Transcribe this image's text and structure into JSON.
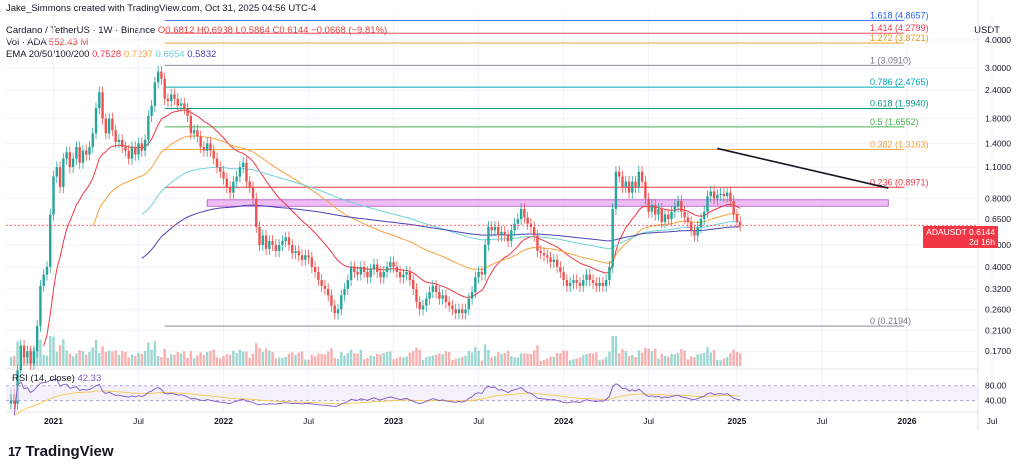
{
  "header": {
    "creator": "Jake_Simmons created with TradingView.com, Oct 31, 2025 04:56 UTC-4",
    "symbol_line": "Cardano / TetherUS · 1W · Binance",
    "ohlc": "O0.6812 H0.6938 L0.5864 C0.6144 −0.0668 (−9.81%)",
    "vol_label": "Vol · ADA",
    "vol_value": "552.43 M",
    "ema_label": "EMA 20/50/100/200",
    "ema_values": [
      "0.7528",
      "0.7237",
      "0.6654",
      "0.5832"
    ],
    "unit": "USDT"
  },
  "price_badge": {
    "symbol": "ADAUSDT",
    "price": "0.6144",
    "countdown": "2d 16h"
  },
  "logo": {
    "mark": "17",
    "text": "TradingView"
  },
  "rsi": {
    "label": "RSI (14, close)",
    "value": "42.33",
    "levels": [
      "80.00",
      "40.00"
    ]
  },
  "colors": {
    "up": "#26a69a",
    "down": "#ef5350",
    "ema20": "#f23645",
    "ema50": "#f7a13a",
    "ema100": "#6ed3d8",
    "ema200": "#4841b6",
    "zone": "#e8a7f0",
    "trend": "#131722"
  },
  "chart_data": {
    "type": "candlestick",
    "title": "Cardano / TetherUS · 1W · Binance",
    "y_scale": "log",
    "y_ticks": [
      "4.0000",
      "3.0000",
      "2.4000",
      "1.8000",
      "1.4000",
      "1.1000",
      "0.8000",
      "0.6500",
      "0.5000",
      "0.4000",
      "0.3200",
      "0.2600",
      "0.2100",
      "0.1700"
    ],
    "x_ticks": [
      "2021",
      "Jul",
      "2022",
      "Jul",
      "2023",
      "Jul",
      "2024",
      "Jul",
      "2025",
      "Jul",
      "2026",
      "Jul"
    ],
    "x_start": "2020-10-05",
    "x_end": "2025-10-27",
    "fib_levels": [
      {
        "label": "1.618 (4.8657)",
        "price": 4.8657,
        "color": "#2962ff"
      },
      {
        "label": "1.414 (4.2799)",
        "price": 4.2799,
        "color": "#f23645"
      },
      {
        "label": "1.272 (3.8721)",
        "price": 3.8721,
        "color": "#e09a1a"
      },
      {
        "label": "1 (3.0910)",
        "price": 3.091,
        "color": "#787b86"
      },
      {
        "label": "0.786 (2.4765)",
        "price": 2.4765,
        "color": "#00a6b5"
      },
      {
        "label": "0.618 (1.9940)",
        "price": 1.994,
        "color": "#089981"
      },
      {
        "label": "0.5 (1.6552)",
        "price": 1.6552,
        "color": "#4caf50"
      },
      {
        "label": "0.382 (1.3163)",
        "price": 1.3163,
        "color": "#f7a13a"
      },
      {
        "label": "0.236 (0.8971)",
        "price": 0.8971,
        "color": "#f23645"
      },
      {
        "label": "0 (0.2194)",
        "price": 0.2194,
        "color": "#787b86"
      }
    ],
    "resistance_zone": {
      "low": 0.74,
      "high": 0.79,
      "from": "2021-11-29",
      "to": "2025-10-27"
    },
    "trendline": {
      "from": [
        "2024-11-25",
        1.33
      ],
      "to": [
        "2025-10-27",
        0.89
      ]
    },
    "series": [
      {
        "name": "ADAUSDT",
        "values": [
          [
            0.1,
            0.11
          ],
          [
            0.11,
            0.1
          ],
          [
            0.1,
            0.14
          ],
          [
            0.14,
            0.18
          ],
          [
            0.18,
            0.16
          ],
          [
            0.16,
            0.17
          ],
          [
            0.17,
            0.15
          ],
          [
            0.15,
            0.17
          ],
          [
            0.17,
            0.22
          ],
          [
            0.22,
            0.33
          ],
          [
            0.33,
            0.37
          ],
          [
            0.37,
            0.4
          ],
          [
            0.4,
            0.68
          ],
          [
            0.68,
            1.0
          ],
          [
            1.0,
            1.1
          ],
          [
            1.1,
            0.9
          ],
          [
            0.9,
            1.2
          ],
          [
            1.2,
            1.28
          ],
          [
            1.28,
            1.1
          ],
          [
            1.1,
            1.2
          ],
          [
            1.2,
            1.35
          ],
          [
            1.35,
            1.15
          ],
          [
            1.15,
            1.3
          ],
          [
            1.3,
            1.25
          ],
          [
            1.25,
            1.35
          ],
          [
            1.35,
            1.55
          ],
          [
            1.55,
            2.0
          ],
          [
            2.0,
            2.35
          ],
          [
            2.35,
            1.8
          ],
          [
            1.8,
            1.55
          ],
          [
            1.55,
            1.8
          ],
          [
            1.8,
            1.6
          ],
          [
            1.6,
            1.42
          ],
          [
            1.42,
            1.45
          ],
          [
            1.45,
            1.35
          ],
          [
            1.35,
            1.3
          ],
          [
            1.3,
            1.2
          ],
          [
            1.2,
            1.35
          ],
          [
            1.35,
            1.25
          ],
          [
            1.25,
            1.4
          ],
          [
            1.4,
            1.3
          ],
          [
            1.3,
            1.45
          ],
          [
            1.45,
            1.85
          ],
          [
            1.85,
            2.05
          ],
          [
            2.05,
            2.6
          ],
          [
            2.6,
            2.9
          ],
          [
            2.9,
            2.7
          ],
          [
            2.7,
            2.2
          ],
          [
            2.2,
            2.15
          ],
          [
            2.15,
            2.3
          ],
          [
            2.3,
            2.2
          ],
          [
            2.2,
            2.05
          ],
          [
            2.05,
            2.1
          ],
          [
            2.1,
            2.0
          ],
          [
            2.0,
            1.85
          ],
          [
            1.85,
            1.55
          ],
          [
            1.55,
            1.6
          ],
          [
            1.6,
            1.5
          ],
          [
            1.5,
            1.35
          ],
          [
            1.35,
            1.3
          ],
          [
            1.3,
            1.4
          ],
          [
            1.4,
            1.3
          ],
          [
            1.3,
            1.2
          ],
          [
            1.2,
            1.1
          ],
          [
            1.1,
            1.05
          ],
          [
            1.05,
            0.98
          ],
          [
            0.98,
            0.9
          ],
          [
            0.9,
            0.85
          ],
          [
            0.85,
            0.95
          ],
          [
            0.95,
            1.0
          ],
          [
            1.0,
            1.1
          ],
          [
            1.1,
            1.15
          ],
          [
            1.15,
            0.95
          ],
          [
            0.95,
            0.9
          ],
          [
            0.9,
            0.8
          ],
          [
            0.8,
            0.6
          ],
          [
            0.6,
            0.5
          ],
          [
            0.5,
            0.55
          ],
          [
            0.55,
            0.48
          ],
          [
            0.48,
            0.52
          ],
          [
            0.52,
            0.5
          ],
          [
            0.5,
            0.47
          ],
          [
            0.47,
            0.5
          ],
          [
            0.5,
            0.52
          ],
          [
            0.52,
            0.54
          ],
          [
            0.54,
            0.5
          ],
          [
            0.5,
            0.46
          ],
          [
            0.46,
            0.47
          ],
          [
            0.47,
            0.45
          ],
          [
            0.45,
            0.43
          ],
          [
            0.43,
            0.45
          ],
          [
            0.45,
            0.44
          ],
          [
            0.44,
            0.4
          ],
          [
            0.4,
            0.38
          ],
          [
            0.38,
            0.35
          ],
          [
            0.35,
            0.33
          ],
          [
            0.33,
            0.32
          ],
          [
            0.32,
            0.3
          ],
          [
            0.3,
            0.27
          ],
          [
            0.27,
            0.25
          ],
          [
            0.25,
            0.26
          ],
          [
            0.26,
            0.3
          ],
          [
            0.3,
            0.32
          ],
          [
            0.32,
            0.35
          ],
          [
            0.35,
            0.4
          ],
          [
            0.4,
            0.38
          ],
          [
            0.38,
            0.37
          ],
          [
            0.37,
            0.4
          ],
          [
            0.4,
            0.38
          ],
          [
            0.38,
            0.36
          ],
          [
            0.36,
            0.39
          ],
          [
            0.39,
            0.41
          ],
          [
            0.41,
            0.38
          ],
          [
            0.38,
            0.36
          ],
          [
            0.36,
            0.38
          ],
          [
            0.38,
            0.4
          ],
          [
            0.4,
            0.42
          ],
          [
            0.42,
            0.4
          ],
          [
            0.4,
            0.38
          ],
          [
            0.38,
            0.36
          ],
          [
            0.36,
            0.37
          ],
          [
            0.37,
            0.38
          ],
          [
            0.38,
            0.35
          ],
          [
            0.35,
            0.32
          ],
          [
            0.32,
            0.28
          ],
          [
            0.28,
            0.26
          ],
          [
            0.26,
            0.27
          ],
          [
            0.27,
            0.29
          ],
          [
            0.29,
            0.31
          ],
          [
            0.31,
            0.33
          ],
          [
            0.33,
            0.31
          ],
          [
            0.31,
            0.29
          ],
          [
            0.29,
            0.3
          ],
          [
            0.3,
            0.28
          ],
          [
            0.28,
            0.27
          ],
          [
            0.27,
            0.26
          ],
          [
            0.26,
            0.25
          ],
          [
            0.25,
            0.26
          ],
          [
            0.26,
            0.25
          ],
          [
            0.25,
            0.26
          ],
          [
            0.26,
            0.29
          ],
          [
            0.29,
            0.31
          ],
          [
            0.31,
            0.36
          ],
          [
            0.36,
            0.38
          ],
          [
            0.38,
            0.37
          ],
          [
            0.37,
            0.5
          ],
          [
            0.5,
            0.6
          ],
          [
            0.6,
            0.58
          ],
          [
            0.58,
            0.6
          ],
          [
            0.6,
            0.55
          ],
          [
            0.55,
            0.57
          ],
          [
            0.57,
            0.55
          ],
          [
            0.55,
            0.52
          ],
          [
            0.52,
            0.58
          ],
          [
            0.58,
            0.62
          ],
          [
            0.62,
            0.65
          ],
          [
            0.65,
            0.72
          ],
          [
            0.72,
            0.66
          ],
          [
            0.66,
            0.62
          ],
          [
            0.62,
            0.6
          ],
          [
            0.6,
            0.55
          ],
          [
            0.55,
            0.47
          ],
          [
            0.47,
            0.46
          ],
          [
            0.46,
            0.45
          ],
          [
            0.45,
            0.44
          ],
          [
            0.44,
            0.42
          ],
          [
            0.42,
            0.43
          ],
          [
            0.43,
            0.4
          ],
          [
            0.4,
            0.38
          ],
          [
            0.38,
            0.35
          ],
          [
            0.35,
            0.33
          ],
          [
            0.33,
            0.34
          ],
          [
            0.34,
            0.35
          ],
          [
            0.35,
            0.34
          ],
          [
            0.34,
            0.33
          ],
          [
            0.33,
            0.35
          ],
          [
            0.35,
            0.37
          ],
          [
            0.37,
            0.35
          ],
          [
            0.35,
            0.34
          ],
          [
            0.34,
            0.33
          ],
          [
            0.33,
            0.34
          ],
          [
            0.34,
            0.33
          ],
          [
            0.33,
            0.35
          ],
          [
            0.35,
            0.4
          ],
          [
            0.4,
            0.72
          ],
          [
            0.72,
            1.05
          ],
          [
            1.05,
            1.0
          ],
          [
            1.0,
            0.9
          ],
          [
            0.9,
            0.95
          ],
          [
            0.95,
            0.85
          ],
          [
            0.85,
            0.95
          ],
          [
            0.95,
            0.9
          ],
          [
            0.9,
            1.05
          ],
          [
            1.05,
            0.95
          ],
          [
            0.95,
            0.8
          ],
          [
            0.8,
            0.7
          ],
          [
            0.7,
            0.75
          ],
          [
            0.75,
            0.68
          ],
          [
            0.68,
            0.72
          ],
          [
            0.72,
            0.63
          ],
          [
            0.63,
            0.68
          ],
          [
            0.68,
            0.65
          ],
          [
            0.65,
            0.7
          ],
          [
            0.7,
            0.74
          ],
          [
            0.74,
            0.78
          ],
          [
            0.78,
            0.7
          ],
          [
            0.7,
            0.66
          ],
          [
            0.66,
            0.63
          ],
          [
            0.63,
            0.58
          ],
          [
            0.58,
            0.55
          ],
          [
            0.55,
            0.6
          ],
          [
            0.6,
            0.65
          ],
          [
            0.65,
            0.7
          ],
          [
            0.7,
            0.82
          ],
          [
            0.82,
            0.86
          ],
          [
            0.86,
            0.8
          ],
          [
            0.8,
            0.83
          ],
          [
            0.83,
            0.84
          ],
          [
            0.84,
            0.82
          ],
          [
            0.82,
            0.85
          ],
          [
            0.85,
            0.78
          ],
          [
            0.78,
            0.68
          ],
          [
            0.68,
            0.63
          ],
          [
            0.63,
            0.61
          ]
        ]
      },
      {
        "name": "EMA 20",
        "color": "#f23645"
      },
      {
        "name": "EMA 50",
        "color": "#f7a13a"
      },
      {
        "name": "EMA 100",
        "color": "#6ed3d8"
      },
      {
        "name": "EMA 200",
        "color": "#4841b6"
      }
    ]
  }
}
